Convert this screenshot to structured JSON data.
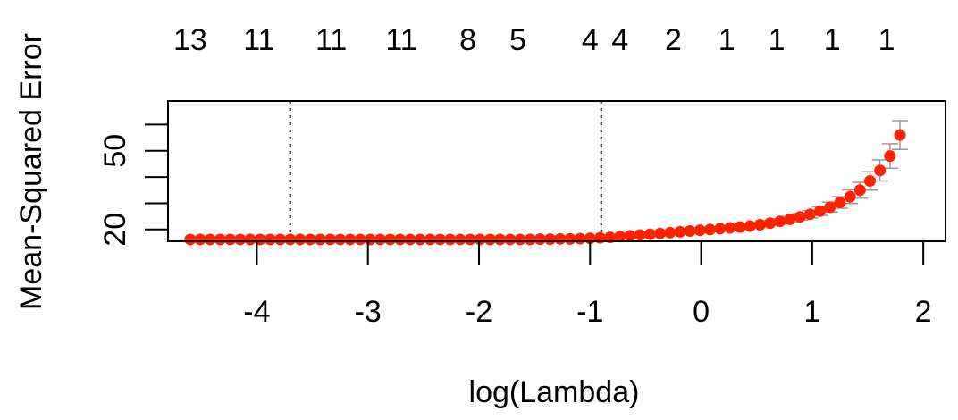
{
  "chart_data": {
    "type": "scatter",
    "xlabel": "log(Lambda)",
    "ylabel": "Mean-Squared Error",
    "xlim": [
      -4.8,
      2.2
    ],
    "ylim": [
      15.5,
      69
    ],
    "xticks": [
      -4,
      -3,
      -2,
      -1,
      0,
      1,
      2
    ],
    "xtick_labels": [
      "-4",
      "-3",
      "-2",
      "-1",
      "0",
      "1",
      "2"
    ],
    "yticks": [
      20,
      30,
      40,
      50,
      60
    ],
    "ytick_labels": [
      "20",
      "",
      "",
      "50",
      ""
    ],
    "top_axis": {
      "positions": [
        -4.6,
        -3.98,
        -3.33,
        -2.7,
        -2.1,
        -1.65,
        -1.0,
        -0.73,
        -0.25,
        0.23,
        0.68,
        1.18,
        1.67
      ],
      "labels": [
        "13",
        "11",
        "11",
        "11",
        "8",
        "5",
        "4",
        "4",
        "2",
        "1",
        "1",
        "1",
        "1"
      ]
    },
    "vlines": [
      -3.7,
      -0.9
    ],
    "grid": false,
    "series": [
      {
        "color": "#ff2200",
        "errorbar_color": "#999999",
        "x": [
          -4.6,
          -4.51,
          -4.42,
          -4.33,
          -4.24,
          -4.15,
          -4.06,
          -3.97,
          -3.88,
          -3.79,
          -3.7,
          -3.61,
          -3.52,
          -3.43,
          -3.34,
          -3.25,
          -3.16,
          -3.07,
          -2.98,
          -2.89,
          -2.8,
          -2.71,
          -2.62,
          -2.53,
          -2.44,
          -2.35,
          -2.26,
          -2.17,
          -2.08,
          -1.99,
          -1.9,
          -1.81,
          -1.72,
          -1.63,
          -1.54,
          -1.45,
          -1.36,
          -1.27,
          -1.18,
          -1.09,
          -1.0,
          -0.91,
          -0.82,
          -0.73,
          -0.64,
          -0.55,
          -0.46,
          -0.37,
          -0.28,
          -0.19,
          -0.1,
          -0.01,
          0.08,
          0.17,
          0.26,
          0.35,
          0.44,
          0.53,
          0.62,
          0.71,
          0.8,
          0.89,
          0.98,
          1.07,
          1.16,
          1.25,
          1.34,
          1.43,
          1.52,
          1.61,
          1.7,
          1.79
        ],
        "y": [
          16.2,
          16.2,
          16.2,
          16.2,
          16.2,
          16.2,
          16.2,
          16.2,
          16.2,
          16.2,
          16.2,
          16.2,
          16.2,
          16.2,
          16.2,
          16.2,
          16.2,
          16.2,
          16.2,
          16.2,
          16.2,
          16.2,
          16.2,
          16.2,
          16.2,
          16.2,
          16.2,
          16.2,
          16.2,
          16.2,
          16.2,
          16.2,
          16.2,
          16.2,
          16.2,
          16.3,
          16.3,
          16.4,
          16.4,
          16.5,
          16.6,
          16.8,
          17.0,
          17.3,
          17.6,
          17.9,
          18.2,
          18.5,
          18.8,
          19.1,
          19.4,
          19.7,
          20.0,
          20.3,
          20.6,
          20.9,
          21.3,
          21.8,
          22.4,
          23.1,
          23.9,
          24.8,
          25.8,
          27.0,
          28.5,
          30.3,
          32.5,
          35.0,
          38.5,
          42.5,
          48.0,
          56.0
        ],
        "err": [
          0.5,
          0.5,
          0.5,
          0.5,
          0.5,
          0.5,
          0.5,
          0.5,
          0.5,
          0.5,
          0.5,
          0.5,
          0.5,
          0.5,
          0.5,
          0.5,
          0.5,
          0.5,
          0.5,
          0.5,
          0.5,
          0.5,
          0.5,
          0.5,
          0.5,
          0.5,
          0.5,
          0.5,
          0.5,
          0.5,
          0.5,
          0.5,
          0.5,
          0.5,
          0.5,
          0.5,
          0.5,
          0.5,
          0.5,
          0.5,
          0.5,
          0.5,
          0.5,
          0.5,
          0.5,
          0.5,
          0.5,
          0.5,
          0.5,
          0.5,
          0.5,
          0.5,
          0.5,
          0.5,
          0.6,
          0.6,
          0.7,
          0.8,
          0.9,
          1.0,
          1.1,
          1.2,
          1.4,
          1.6,
          1.9,
          2.2,
          2.6,
          3.0,
          3.5,
          4.0,
          4.7,
          5.5
        ]
      }
    ]
  }
}
